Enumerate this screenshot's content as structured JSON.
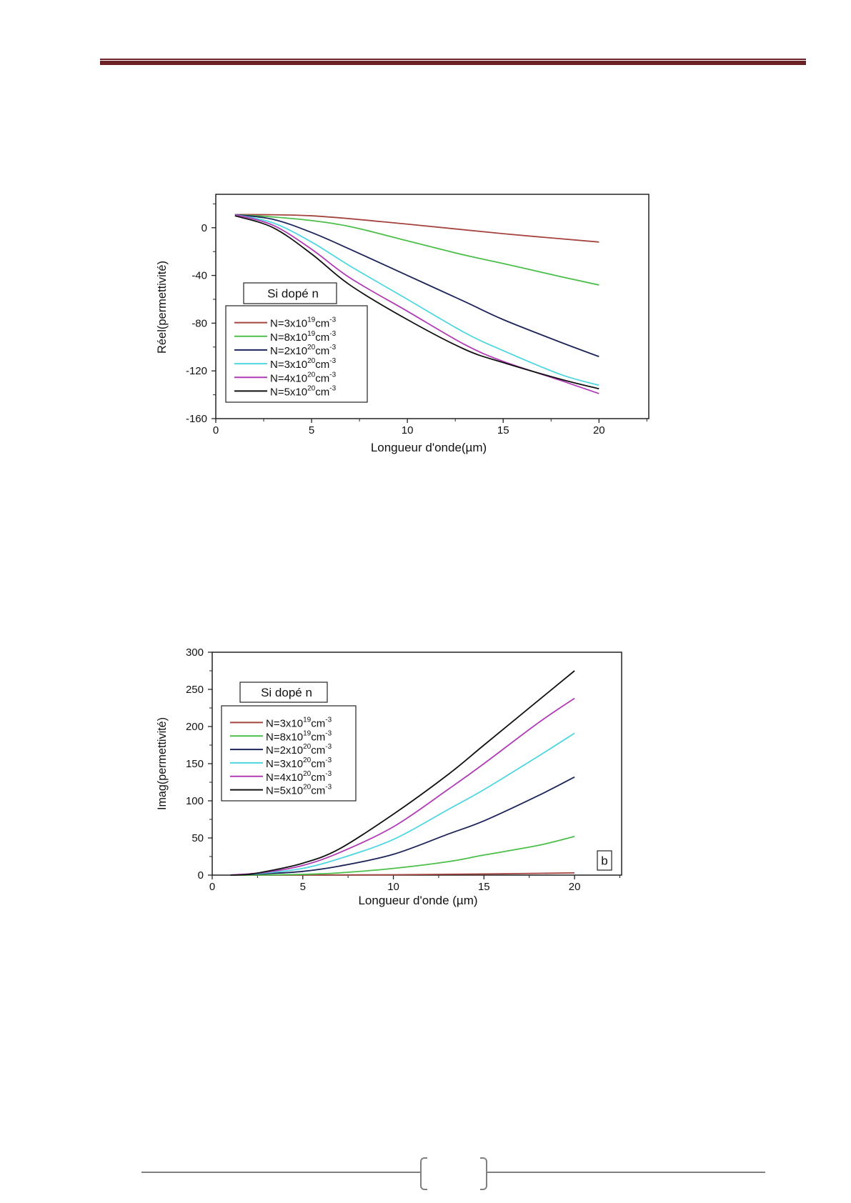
{
  "header": {
    "rule_color": "#6a2227"
  },
  "footer": {
    "page_number": ""
  },
  "chart_data": [
    {
      "type": "line",
      "title": "",
      "xlabel": "Longueur d'onde(µm)",
      "ylabel": "Réel(permettivité)",
      "xlim": [
        0,
        22.6
      ],
      "ylim": [
        -160,
        28
      ],
      "xticks": [
        0,
        5,
        10,
        15,
        20
      ],
      "yticks": [
        0,
        -40,
        -80,
        -120,
        -160
      ],
      "grid": false,
      "annotation": "Si dopé n",
      "legend_placement": "center-left",
      "series": [
        {
          "name": "N=3x10^19cm^-3",
          "label": {
            "base": "N=3x10",
            "exp": "19",
            "unit": "cm",
            "unit_exp": "-3"
          },
          "color": "#a5443f",
          "x": [
            1,
            5,
            10,
            15,
            20
          ],
          "y": [
            11,
            10,
            3,
            -5,
            -12
          ]
        },
        {
          "name": "N=8x10^19cm^-3",
          "label": {
            "base": "N=8x10",
            "exp": "19",
            "unit": "cm",
            "unit_exp": "-3"
          },
          "color": "#4cbf4a",
          "x": [
            1,
            3,
            5,
            7,
            10,
            13,
            15,
            18,
            20
          ],
          "y": [
            11,
            9,
            6,
            1,
            -11,
            -23,
            -30,
            -41,
            -48
          ]
        },
        {
          "name": "N=2x10^20cm^-3",
          "label": {
            "base": "N=2x10",
            "exp": "20",
            "unit": "cm",
            "unit_exp": "-3"
          },
          "color": "#1c2459",
          "x": [
            1,
            3,
            5,
            7,
            10,
            13,
            15,
            18,
            20
          ],
          "y": [
            11,
            7,
            -4,
            -18,
            -40,
            -62,
            -77,
            -96,
            -108
          ]
        },
        {
          "name": "N=3x10^20cm^-3",
          "label": {
            "base": "N=3x10",
            "exp": "20",
            "unit": "cm",
            "unit_exp": "-3"
          },
          "color": "#4fd6e0",
          "x": [
            1,
            3,
            5,
            7,
            10,
            13,
            15,
            18,
            20
          ],
          "y": [
            11,
            4,
            -12,
            -32,
            -60,
            -88,
            -103,
            -123,
            -132
          ]
        },
        {
          "name": "N=4x10^20cm^-3",
          "label": {
            "base": "N=4x10",
            "exp": "20",
            "unit": "cm",
            "unit_exp": "-3"
          },
          "color": "#b03cb5",
          "x": [
            1,
            3,
            5,
            7,
            10,
            13,
            15,
            18,
            20
          ],
          "y": [
            11,
            2,
            -18,
            -42,
            -70,
            -98,
            -112,
            -128,
            -139
          ]
        },
        {
          "name": "N=5x10^20cm^-3",
          "label": {
            "base": "N=5x10",
            "exp": "20",
            "unit": "cm",
            "unit_exp": "-3"
          },
          "color": "#111111",
          "x": [
            1,
            3,
            5,
            7,
            10,
            13,
            15,
            18,
            20
          ],
          "y": [
            10,
            0,
            -22,
            -48,
            -77,
            -102,
            -113,
            -127,
            -135
          ]
        }
      ]
    },
    {
      "type": "line",
      "title": "",
      "xlabel": "Longueur d'onde (µm)",
      "ylabel": "Imag(permettivité)",
      "xlim": [
        0,
        22.6
      ],
      "ylim": [
        0,
        300
      ],
      "xticks": [
        0,
        5,
        10,
        15,
        20
      ],
      "yticks": [
        0,
        50,
        100,
        150,
        200,
        250,
        300
      ],
      "grid": false,
      "annotation": "Si dopé n",
      "panel_label": "b",
      "legend_placement": "top-left",
      "series": [
        {
          "name": "N=3x10^19cm^-3",
          "label": {
            "base": "N=3x10",
            "exp": "19",
            "unit": "cm",
            "unit_exp": "-3"
          },
          "color": "#a5443f",
          "x": [
            1,
            5,
            10,
            15,
            20
          ],
          "y": [
            0,
            0.1,
            0.5,
            1.5,
            3
          ]
        },
        {
          "name": "N=8x10^19cm^-3",
          "label": {
            "base": "N=8x10",
            "exp": "19",
            "unit": "cm",
            "unit_exp": "-3"
          },
          "color": "#4cbf4a",
          "x": [
            1,
            3,
            5,
            7,
            10,
            13,
            15,
            18,
            20
          ],
          "y": [
            0,
            0.3,
            1,
            3,
            9,
            18,
            27,
            40,
            52
          ]
        },
        {
          "name": "N=2x10^20cm^-3",
          "label": {
            "base": "N=2x10",
            "exp": "20",
            "unit": "cm",
            "unit_exp": "-3"
          },
          "color": "#1c2459",
          "x": [
            1,
            3,
            5,
            7,
            10,
            13,
            15,
            18,
            20
          ],
          "y": [
            0,
            2,
            5,
            12,
            28,
            55,
            73,
            107,
            132
          ]
        },
        {
          "name": "N=3x10^20cm^-3",
          "label": {
            "base": "N=3x10",
            "exp": "20",
            "unit": "cm",
            "unit_exp": "-3"
          },
          "color": "#4fd6e0",
          "x": [
            1,
            3,
            5,
            7,
            10,
            13,
            15,
            18,
            20
          ],
          "y": [
            0,
            3,
            9,
            22,
            48,
            88,
            115,
            160,
            191
          ]
        },
        {
          "name": "N=4x10^20cm^-3",
          "label": {
            "base": "N=4x10",
            "exp": "20",
            "unit": "cm",
            "unit_exp": "-3"
          },
          "color": "#b03cb5",
          "x": [
            1,
            3,
            5,
            7,
            10,
            13,
            15,
            18,
            20
          ],
          "y": [
            0,
            4,
            13,
            30,
            65,
            115,
            150,
            205,
            238
          ]
        },
        {
          "name": "N=5x10^20cm^-3",
          "label": {
            "base": "N=5x10",
            "exp": "20",
            "unit": "cm",
            "unit_exp": "-3"
          },
          "color": "#111111",
          "x": [
            1,
            2,
            3,
            5,
            7,
            10,
            13,
            15,
            18,
            20
          ],
          "y": [
            0,
            1,
            5,
            16,
            35,
            82,
            135,
            175,
            235,
            275
          ]
        }
      ]
    }
  ]
}
